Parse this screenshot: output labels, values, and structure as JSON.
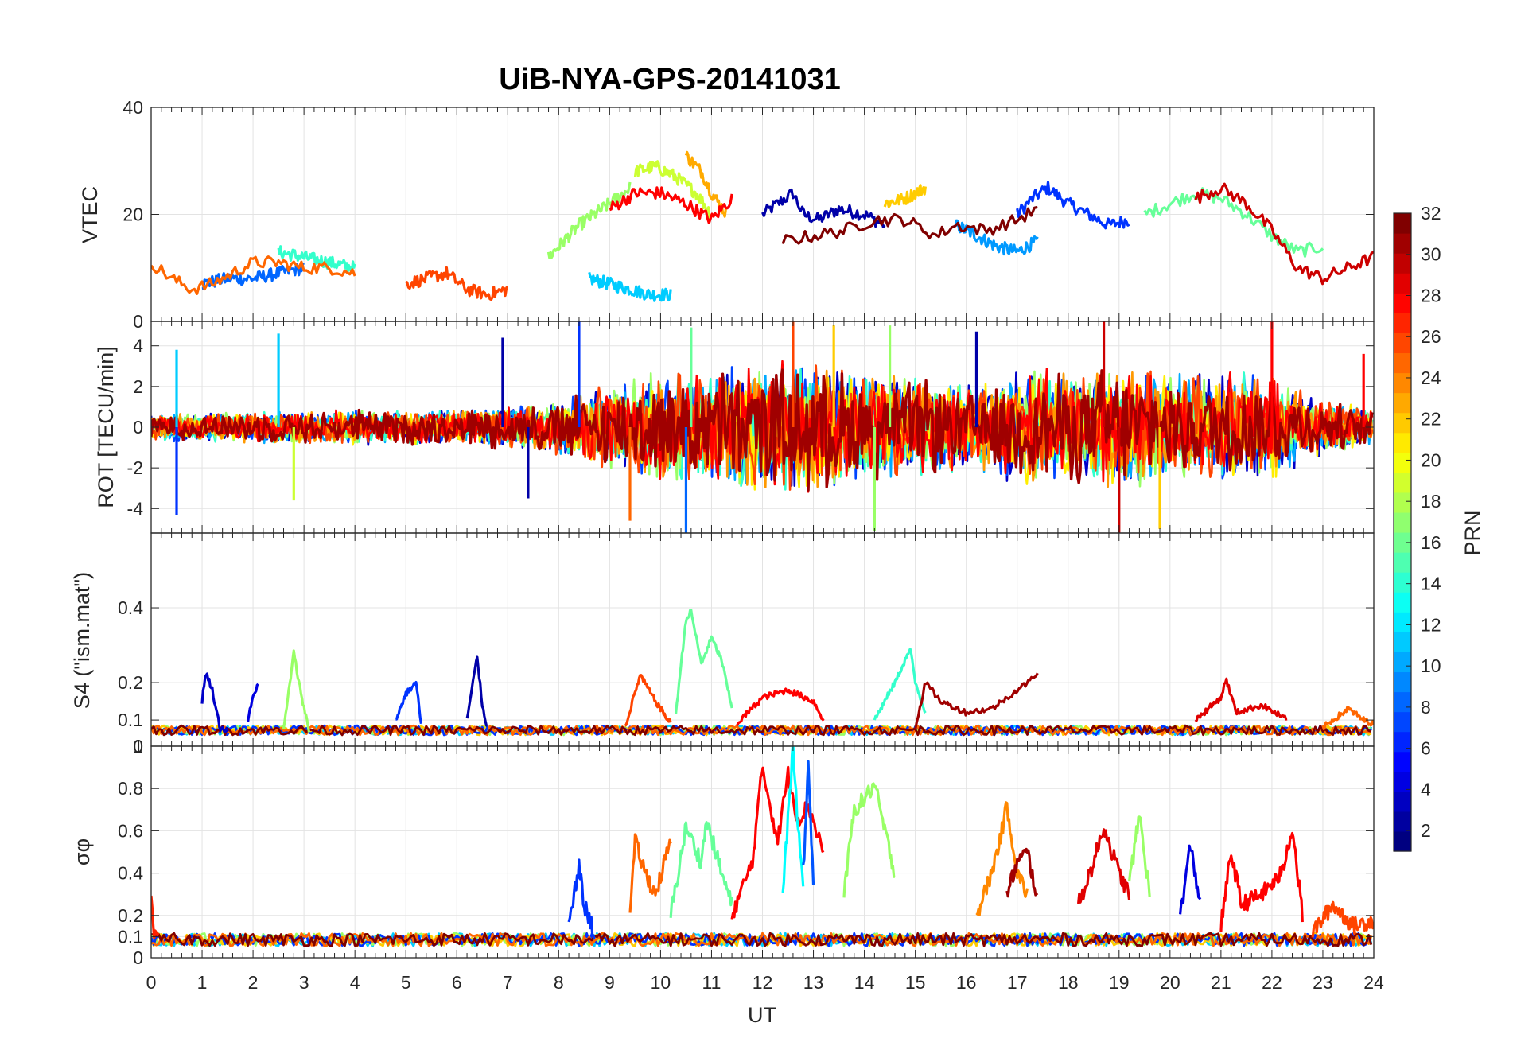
{
  "chart_data": {
    "type": "line",
    "title": "UiB-NYA-GPS-20141031",
    "xlabel": "UT",
    "xlim": [
      0,
      24
    ],
    "x_ticks": [
      "0",
      "1",
      "2",
      "3",
      "4",
      "5",
      "6",
      "7",
      "8",
      "9",
      "10",
      "11",
      "12",
      "13",
      "14",
      "15",
      "16",
      "17",
      "18",
      "19",
      "20",
      "21",
      "22",
      "23",
      "24"
    ],
    "grid": true,
    "colorbar": {
      "label": "PRN",
      "range": [
        1,
        32
      ],
      "ticks": [
        "2",
        "4",
        "6",
        "8",
        "10",
        "12",
        "14",
        "16",
        "18",
        "20",
        "22",
        "24",
        "26",
        "28",
        "30",
        "32"
      ],
      "colormap": "jet",
      "placement": "right"
    },
    "panels": [
      {
        "id": "vtec",
        "ylabel": "VTEC",
        "ylim": [
          0,
          40
        ],
        "y_ticks": [
          "0",
          "20",
          "40"
        ],
        "series": [
          {
            "prn": 2,
            "color": "#0000a8",
            "x": [
              12.0,
              12.3,
              12.6,
              12.8,
              13.1,
              13.5,
              14.0,
              14.4
            ],
            "y": [
              20,
              22,
              24,
              20,
              19,
              21,
              20,
              18
            ]
          },
          {
            "prn": 5,
            "color": "#0033ff",
            "x": [
              17.0,
              17.3,
              17.6,
              18.0,
              18.4,
              18.8,
              19.2
            ],
            "y": [
              20,
              23,
              25,
              22,
              20,
              18,
              19
            ]
          },
          {
            "prn": 7,
            "color": "#0066ff",
            "x": [
              1.0,
              1.5,
              2.0,
              2.5,
              3.0
            ],
            "y": [
              7,
              8,
              8,
              9,
              10
            ]
          },
          {
            "prn": 10,
            "color": "#0099ff",
            "x": [
              15.8,
              16.2,
              16.6,
              17.0,
              17.4
            ],
            "y": [
              18,
              16,
              14,
              13,
              15
            ]
          },
          {
            "prn": 12,
            "color": "#00ccff",
            "x": [
              8.6,
              9.0,
              9.4,
              9.8,
              10.2
            ],
            "y": [
              8,
              7,
              6,
              5,
              5
            ]
          },
          {
            "prn": 14,
            "color": "#33ffcc",
            "x": [
              2.5,
              3.0,
              3.5,
              4.0
            ],
            "y": [
              13,
              12,
              11,
              10
            ]
          },
          {
            "prn": 16,
            "color": "#66ff99",
            "x": [
              19.5,
              20.0,
              20.5,
              21.0,
              21.5,
              22.0,
              22.5,
              23.0
            ],
            "y": [
              20,
              22,
              24,
              23,
              20,
              16,
              13,
              14
            ]
          },
          {
            "prn": 18,
            "color": "#99ff66",
            "x": [
              7.8,
              8.4,
              9.0,
              9.4
            ],
            "y": [
              12,
              18,
              22,
              25
            ]
          },
          {
            "prn": 20,
            "color": "#ccff33",
            "x": [
              9.5,
              9.9,
              10.3,
              10.7,
              11.0
            ],
            "y": [
              28,
              29,
              27,
              24,
              20
            ]
          },
          {
            "prn": 22,
            "color": "#ffcc00",
            "x": [
              14.4,
              14.8,
              15.2
            ],
            "y": [
              22,
              23,
              25
            ]
          },
          {
            "prn": 23,
            "color": "#ffaa00",
            "x": [
              10.5,
              10.8,
              11.0,
              11.3
            ],
            "y": [
              31,
              28,
              24,
              20
            ]
          },
          {
            "prn": 25,
            "color": "#ff6600",
            "x": [
              0.0,
              0.4,
              0.8,
              1.2,
              1.6,
              2.0,
              2.5,
              3.0,
              3.5,
              4.0
            ],
            "y": [
              11,
              8,
              6,
              7,
              9,
              11,
              11,
              10,
              10,
              9
            ]
          },
          {
            "prn": 26,
            "color": "#ff4400",
            "x": [
              5.0,
              5.4,
              5.8,
              6.2,
              6.6,
              7.0
            ],
            "y": [
              7,
              8,
              9,
              6,
              5,
              6
            ]
          },
          {
            "prn": 28,
            "color": "#ff0000",
            "x": [
              9.0,
              9.5,
              10.0,
              10.5,
              11.0,
              11.4
            ],
            "y": [
              21,
              24,
              24,
              22,
              19,
              23
            ]
          },
          {
            "prn": 30,
            "color": "#cc0000",
            "x": [
              20.5,
              21.0,
              21.5,
              22.0,
              22.5,
              23.0,
              23.5,
              24.0
            ],
            "y": [
              23,
              25,
              22,
              17,
              10,
              8,
              10,
              12
            ]
          },
          {
            "prn": 32,
            "color": "#800000",
            "x": [
              12.4,
              13.0,
              13.6,
              14.2,
              14.8,
              15.4,
              15.8,
              16.4,
              17.0,
              17.4
            ],
            "y": [
              15,
              16,
              17,
              19,
              19,
              16,
              18,
              17,
              19,
              21
            ]
          }
        ]
      },
      {
        "id": "rot",
        "ylabel": "ROT [TECU/min]",
        "ylim": [
          -5.2,
          5.2
        ],
        "y_ticks": [
          "-4",
          "-2",
          "0",
          "2",
          "4"
        ],
        "envelope": {
          "x": [
            0,
            2,
            4,
            6,
            8,
            9,
            10,
            11,
            12,
            13,
            14,
            15,
            16,
            17,
            18,
            19,
            20,
            21,
            22,
            23,
            24
          ],
          "amplitude": [
            0.7,
            0.8,
            0.9,
            0.9,
            1.5,
            2.2,
            2.8,
            3.0,
            3.4,
            3.5,
            2.8,
            2.6,
            2.3,
            2.8,
            3.0,
            3.2,
            2.8,
            2.9,
            2.6,
            1.4,
            0.9
          ]
        },
        "spikes": [
          {
            "x": 0.5,
            "y": 3.8,
            "color": "#00ccff"
          },
          {
            "x": 0.5,
            "y": -4.3,
            "color": "#0033ff"
          },
          {
            "x": 2.5,
            "y": 4.6,
            "color": "#00ccff"
          },
          {
            "x": 2.8,
            "y": -3.6,
            "color": "#ccff33"
          },
          {
            "x": 6.9,
            "y": 4.4,
            "color": "#0000a8"
          },
          {
            "x": 7.4,
            "y": -3.5,
            "color": "#0000a8"
          },
          {
            "x": 8.4,
            "y": 5.2,
            "color": "#0033ff"
          },
          {
            "x": 9.4,
            "y": -4.6,
            "color": "#ff6600"
          },
          {
            "x": 10.5,
            "y": -5.2,
            "color": "#0066ff"
          },
          {
            "x": 10.6,
            "y": 4.9,
            "color": "#66ff99"
          },
          {
            "x": 12.6,
            "y": 5.2,
            "color": "#ff4400"
          },
          {
            "x": 13.4,
            "y": 5.0,
            "color": "#ffcc00"
          },
          {
            "x": 14.2,
            "y": -5.1,
            "color": "#99ff66"
          },
          {
            "x": 14.5,
            "y": 5.0,
            "color": "#99ff66"
          },
          {
            "x": 16.2,
            "y": 4.7,
            "color": "#0000a8"
          },
          {
            "x": 18.7,
            "y": 5.2,
            "color": "#cc0000"
          },
          {
            "x": 19.0,
            "y": -5.2,
            "color": "#cc0000"
          },
          {
            "x": 19.8,
            "y": -5.0,
            "color": "#ffcc00"
          },
          {
            "x": 22.0,
            "y": 5.2,
            "color": "#ff0000"
          },
          {
            "x": 23.8,
            "y": 3.6,
            "color": "#ff0000"
          }
        ]
      },
      {
        "id": "s4",
        "ylabel": "S4 (\"ism.mat\")",
        "ylim": [
          0.03,
          0.6
        ],
        "y_ticks": [
          "0",
          "0.1",
          "0.2",
          "0.4"
        ],
        "y_tick_values": [
          0.03,
          0.1,
          0.2,
          0.4
        ],
        "baseline": 0.07,
        "series": [
          {
            "prn": 3,
            "color": "#0000c8",
            "x": [
              1.0,
              1.05,
              1.1,
              1.2,
              1.35,
              1.5
            ],
            "y": [
              0.15,
              0.21,
              0.22,
              0.18,
              0.08,
              0.07
            ]
          },
          {
            "prn": 4,
            "color": "#0000e0",
            "x": [
              1.9,
              2.0,
              2.1
            ],
            "y": [
              0.1,
              0.16,
              0.2
            ]
          },
          {
            "prn": 17,
            "color": "#99ff66",
            "x": [
              2.6,
              2.8,
              2.9,
              3.1
            ],
            "y": [
              0.07,
              0.28,
              0.2,
              0.07
            ]
          },
          {
            "prn": 6,
            "color": "#0033ff",
            "x": [
              4.8,
              5.0,
              5.2,
              5.3
            ],
            "y": [
              0.1,
              0.17,
              0.2,
              0.09
            ]
          },
          {
            "prn": 2,
            "color": "#0000a8",
            "x": [
              6.2,
              6.4,
              6.5,
              6.6
            ],
            "y": [
              0.1,
              0.27,
              0.14,
              0.08
            ]
          },
          {
            "prn": 26,
            "color": "#ff4400",
            "x": [
              9.3,
              9.6,
              9.9,
              10.2
            ],
            "y": [
              0.08,
              0.22,
              0.15,
              0.09
            ]
          },
          {
            "prn": 15,
            "color": "#66ff99",
            "x": [
              10.3,
              10.5,
              10.6,
              10.8,
              11.0,
              11.2,
              11.4
            ],
            "y": [
              0.12,
              0.37,
              0.39,
              0.25,
              0.32,
              0.26,
              0.13
            ]
          },
          {
            "prn": 28,
            "color": "#ff0000",
            "x": [
              11.5,
              12.0,
              12.5,
              13.0,
              13.2
            ],
            "y": [
              0.09,
              0.16,
              0.18,
              0.15,
              0.1
            ]
          },
          {
            "prn": 14,
            "color": "#33ffcc",
            "x": [
              14.2,
              14.6,
              14.9,
              15.0,
              15.2
            ],
            "y": [
              0.1,
              0.2,
              0.29,
              0.2,
              0.12
            ]
          },
          {
            "prn": 31,
            "color": "#a00000",
            "x": [
              15.0,
              15.2,
              15.5,
              16.0,
              16.5,
              17.0,
              17.3,
              17.4
            ],
            "y": [
              0.08,
              0.2,
              0.15,
              0.12,
              0.13,
              0.18,
              0.21,
              0.23
            ]
          },
          {
            "prn": 29,
            "color": "#e00000",
            "x": [
              20.5,
              21.0,
              21.1,
              21.3,
              21.8,
              22.3
            ],
            "y": [
              0.1,
              0.16,
              0.21,
              0.12,
              0.14,
              0.1
            ]
          },
          {
            "prn": 25,
            "color": "#ff6600",
            "x": [
              23.0,
              23.5,
              23.8,
              24.0
            ],
            "y": [
              0.08,
              0.13,
              0.1,
              0.09
            ]
          }
        ]
      },
      {
        "id": "sigma_phi",
        "ylabel": "σφ",
        "ylim": [
          0,
          1
        ],
        "y_ticks": [
          "0",
          "0.1",
          "0.2",
          "0.4",
          "0.6",
          "0.8",
          "1"
        ],
        "baseline": 0.08,
        "series": [
          {
            "prn": 27,
            "color": "#ff2200",
            "x": [
              0.0,
              0.05,
              0.15
            ],
            "y": [
              0.32,
              0.12,
              0.09
            ]
          },
          {
            "prn": 6,
            "color": "#0033ff",
            "x": [
              8.2,
              8.4,
              8.5,
              8.7
            ],
            "y": [
              0.15,
              0.43,
              0.25,
              0.12
            ]
          },
          {
            "prn": 25,
            "color": "#ff6600",
            "x": [
              9.4,
              9.5,
              9.7,
              9.9,
              10.2
            ],
            "y": [
              0.2,
              0.55,
              0.4,
              0.3,
              0.55
            ]
          },
          {
            "prn": 16,
            "color": "#66ff99",
            "x": [
              10.2,
              10.5,
              10.8,
              10.9,
              11.2,
              11.4
            ],
            "y": [
              0.2,
              0.62,
              0.45,
              0.65,
              0.4,
              0.25
            ]
          },
          {
            "prn": 28,
            "color": "#ff0000",
            "x": [
              11.4,
              11.8,
              12.0,
              12.3,
              12.5,
              12.7,
              12.9,
              13.2
            ],
            "y": [
              0.2,
              0.45,
              0.9,
              0.55,
              0.87,
              0.65,
              0.72,
              0.5
            ]
          },
          {
            "prn": 13,
            "color": "#00ffff",
            "x": [
              12.4,
              12.6,
              12.7,
              12.8
            ],
            "y": [
              0.3,
              1.0,
              0.6,
              0.35
            ]
          },
          {
            "prn": 8,
            "color": "#0055ff",
            "x": [
              12.8,
              12.9,
              13.0
            ],
            "y": [
              0.4,
              0.91,
              0.35
            ]
          },
          {
            "prn": 18,
            "color": "#99ff66",
            "x": [
              13.6,
              13.8,
              14.0,
              14.2,
              14.4,
              14.6
            ],
            "y": [
              0.3,
              0.7,
              0.75,
              0.82,
              0.6,
              0.4
            ]
          },
          {
            "prn": 24,
            "color": "#ff8800",
            "x": [
              16.2,
              16.5,
              16.7,
              16.8,
              17.0,
              17.2
            ],
            "y": [
              0.2,
              0.4,
              0.6,
              0.72,
              0.4,
              0.3
            ]
          },
          {
            "prn": 31,
            "color": "#a00000",
            "x": [
              16.8,
              17.0,
              17.2,
              17.4
            ],
            "y": [
              0.3,
              0.45,
              0.5,
              0.28
            ]
          },
          {
            "prn": 29,
            "color": "#e00000",
            "x": [
              18.2,
              18.5,
              18.7,
              19.0,
              19.2
            ],
            "y": [
              0.25,
              0.45,
              0.62,
              0.4,
              0.3
            ]
          },
          {
            "prn": 17,
            "color": "#99ff66",
            "x": [
              19.2,
              19.4,
              19.6
            ],
            "y": [
              0.35,
              0.68,
              0.3
            ]
          },
          {
            "prn": 4,
            "color": "#0000e0",
            "x": [
              20.2,
              20.4,
              20.6
            ],
            "y": [
              0.2,
              0.53,
              0.25
            ]
          },
          {
            "prn": 28,
            "color": "#ff0000",
            "x": [
              21.0,
              21.2,
              21.4,
              21.8,
              22.2,
              22.4,
              22.6
            ],
            "y": [
              0.15,
              0.5,
              0.25,
              0.3,
              0.4,
              0.62,
              0.2
            ]
          },
          {
            "prn": 26,
            "color": "#ff4400",
            "x": [
              22.8,
              23.2,
              23.6,
              24.0
            ],
            "y": [
              0.12,
              0.25,
              0.15,
              0.18
            ]
          }
        ]
      }
    ]
  }
}
